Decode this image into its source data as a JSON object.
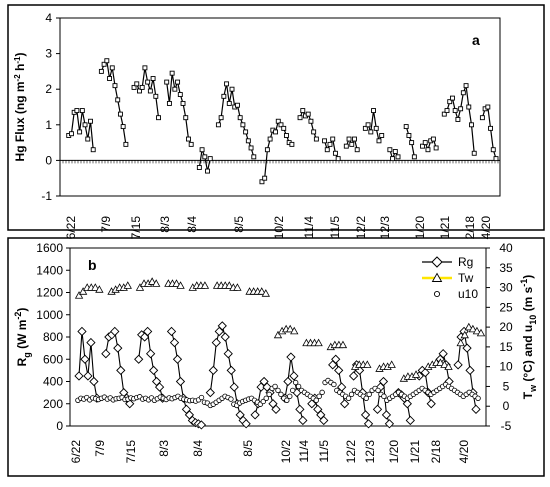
{
  "chart_data": [
    {
      "type": "line",
      "panel_label": "a",
      "ylabel": "Hg Flux (ng m-2 h-1)",
      "ylabel_parts": {
        "main": "Hg Flux (ng m",
        "exp1": "-2",
        "mid": " h",
        "exp2": "-1",
        "end": ")"
      },
      "ylim": [
        -1,
        4
      ],
      "yticks": [
        "-1",
        "0",
        "1",
        "2",
        "3",
        "4"
      ],
      "xticks": [
        "6/22",
        "7/9",
        "7/15",
        "8/3",
        "8/4",
        "8/5",
        "10/2",
        "11/4",
        "11/5",
        "12/2",
        "12/3",
        "1/20",
        "1/21",
        "2/18",
        "4/20"
      ],
      "segments": [
        [
          0.7,
          0.75,
          1.35,
          1.4,
          0.8,
          1.4,
          1.0,
          0.6,
          1.1,
          0.3
        ],
        [
          2.5,
          2.7,
          2.8,
          2.3,
          2.6,
          2.1,
          1.7,
          1.3,
          0.95,
          0.45
        ],
        [
          2.05,
          2.15,
          1.95,
          2.05,
          2.6,
          2.2,
          1.95,
          2.3,
          1.8,
          1.2
        ],
        [
          2.2,
          1.6,
          2.45,
          2.0,
          2.2,
          1.85,
          1.6,
          1.2,
          0.6,
          0.45
        ],
        [
          -0.2,
          0.3,
          0.1,
          -0.3,
          0.05
        ],
        [
          1.0,
          1.2,
          1.8,
          2.15,
          1.6,
          2.0,
          1.5,
          1.55,
          1.2,
          1.0,
          0.8,
          0.55,
          0.35,
          0.1
        ],
        [
          -0.6,
          -0.5,
          0.3,
          0.6,
          0.85,
          0.8,
          1.1,
          1.0,
          0.9,
          0.7,
          0.5,
          0.45
        ],
        [
          1.2,
          1.4,
          1.25,
          1.3,
          1.1,
          0.8,
          0.6
        ],
        [
          0.55,
          0.3,
          0.45,
          0.6,
          0.2,
          0.05
        ],
        [
          0.4,
          0.6,
          0.45,
          0.6,
          0.3
        ],
        [
          0.9,
          1.0,
          0.8,
          1.4,
          0.9,
          0.55,
          0.7
        ],
        [
          0.3,
          0.05,
          0.25,
          0.1
        ],
        [
          0.95,
          0.7,
          0.5,
          0.1
        ],
        [
          0.4,
          0.5,
          0.3,
          0.55,
          0.6,
          0.35
        ],
        [
          1.3,
          1.4,
          1.65,
          1.75,
          1.4,
          1.15,
          1.45,
          1.9,
          2.1,
          1.5,
          1.0,
          0.2
        ],
        [
          1.2,
          1.45,
          1.5,
          0.9,
          0.3,
          0.05
        ]
      ]
    },
    {
      "type": "line",
      "panel_label": "b",
      "ylabel_left": "Rg (W m-2)",
      "ylabel_left_parts": {
        "main": "R",
        "sub": "g",
        "mid": " (W m",
        "exp": "-2",
        "end": ")"
      },
      "ylabel_right": "Tw (°C) and u10 (m s-1)",
      "ylabel_right_parts": {
        "a": "T",
        "asub": "w",
        "b": " (°C) and u",
        "bsub": "10",
        "c": " (m s",
        "exp": "-1",
        "d": ")"
      },
      "ylim_left": [
        0,
        1600
      ],
      "yticks_left": [
        "0",
        "200",
        "400",
        "600",
        "800",
        "1000",
        "1200",
        "1400",
        "1600"
      ],
      "ylim_right": [
        -5,
        40
      ],
      "yticks_right": [
        "-5",
        "0",
        "5",
        "10",
        "15",
        "20",
        "25",
        "30",
        "35",
        "40"
      ],
      "xticks": [
        "6/22",
        "7/9",
        "7/15",
        "8/3",
        "8/4",
        "8/5",
        "10/2",
        "11/4",
        "11/5",
        "12/2",
        "12/3",
        "1/20",
        "1/21",
        "2/18",
        "4/20"
      ],
      "legend": [
        "Rg",
        "Tw",
        "u10"
      ],
      "colors": {
        "Rg": "#000000",
        "Tw": "#ffe600",
        "u10": "#000000"
      },
      "series": [
        {
          "name": "Rg",
          "segments": [
            [
              450,
              850,
              600,
              450,
              750,
              400,
              250
            ],
            [
              650,
              800,
              820,
              850,
              700,
              500,
              300,
              250,
              200
            ],
            [
              600,
              820,
              800,
              850,
              650,
              500,
              400,
              350,
              250
            ],
            [
              850,
              750,
              600,
              400,
              250,
              150,
              100,
              50,
              30,
              20,
              10
            ],
            [
              300,
              500,
              750,
              850,
              900,
              800,
              650,
              500,
              350,
              200,
              100,
              50,
              20
            ],
            [
              100,
              200,
              350,
              400,
              350,
              300,
              200,
              150
            ],
            [
              250,
              400,
              620,
              450,
              300,
              150,
              50
            ],
            [
              200,
              250,
              150,
              100,
              50
            ],
            [
              550,
              600,
              500,
              350,
              200
            ],
            [
              450,
              550,
              500,
              300,
              100,
              20
            ],
            [
              150,
              350,
              400,
              100,
              20
            ],
            [
              300,
              280,
              250,
              200,
              50
            ],
            [
              450,
              500,
              480,
              300,
              200
            ],
            [
              600,
              650,
              550,
              400
            ],
            [
              550,
              800,
              850,
              700,
              500,
              300,
              150
            ]
          ]
        },
        {
          "name": "Tw",
          "segments": [
            [
              28,
              29,
              30,
              30,
              30,
              29.5
            ],
            [
              29,
              29.5,
              30,
              30,
              30.5
            ],
            [
              30,
              31,
              31,
              31.5,
              31
            ],
            [
              31,
              31,
              31,
              30.5
            ],
            [
              30,
              30.5,
              30.5,
              30.5
            ],
            [
              30.5,
              30.5,
              30.5,
              30.5,
              30,
              30
            ],
            [
              29,
              29,
              29,
              29,
              28.5
            ],
            [
              18,
              19,
              19.5,
              19.5,
              19
            ],
            [
              16,
              16,
              16,
              16
            ],
            [
              15,
              15.5,
              15.5,
              15.5
            ],
            [
              10,
              10.5,
              10.5,
              10.5
            ],
            [
              9.5,
              10,
              10,
              10.5
            ],
            [
              7,
              7.5,
              7.5,
              8
            ],
            [
              10,
              10.5,
              11,
              11,
              10.5,
              10
            ],
            [
              16,
              18,
              20,
              19.5,
              19,
              18.5
            ]
          ]
        },
        {
          "name": "u10",
          "values": [
            1.5,
            2,
            1.8,
            2.2,
            1.6,
            2.1,
            1.9,
            1.7,
            2,
            2.3,
            1.8,
            2.1,
            1.6,
            1.9,
            2,
            2.2,
            1.7,
            1.8,
            2.1,
            1.9,
            2.2,
            2.4,
            1.8,
            2,
            1.6,
            2.1,
            1.5,
            1.9,
            2.3,
            2,
            1.7,
            2.1,
            1.9,
            2.2,
            2.5,
            2,
            1.8,
            1.6,
            1.4,
            1.5,
            1.3,
            1.6,
            2.2,
            1,
            0.8,
            0.2,
            0.5,
            1,
            1.5,
            2,
            2.5,
            2.2,
            1.8,
            0.5,
            0.2,
            0.8,
            1.2,
            1.5,
            1.8,
            2,
            1.5,
            1,
            0.5,
            1.2,
            2,
            3,
            4.5,
            5,
            4,
            3,
            2,
            1.5,
            2.5,
            4,
            6,
            5,
            4,
            3.5,
            3,
            2.5,
            2,
            1.5,
            2.5,
            3.5,
            6,
            6.5,
            6,
            5.5,
            4,
            3.5,
            3,
            2.5,
            2,
            3,
            4,
            3.5,
            3,
            2.5,
            2,
            3,
            4,
            4.5,
            4,
            3,
            2.5,
            1.5,
            2,
            2.5,
            3,
            3.5,
            3,
            2.5,
            2,
            2.5,
            3,
            3.5,
            4,
            4.5,
            4,
            3.5,
            3,
            3.5,
            4,
            4.5,
            5,
            5.5,
            5,
            4.5,
            4,
            3.5,
            3,
            2.5,
            3,
            3.5,
            3,
            2.5,
            2
          ]
        }
      ]
    }
  ]
}
